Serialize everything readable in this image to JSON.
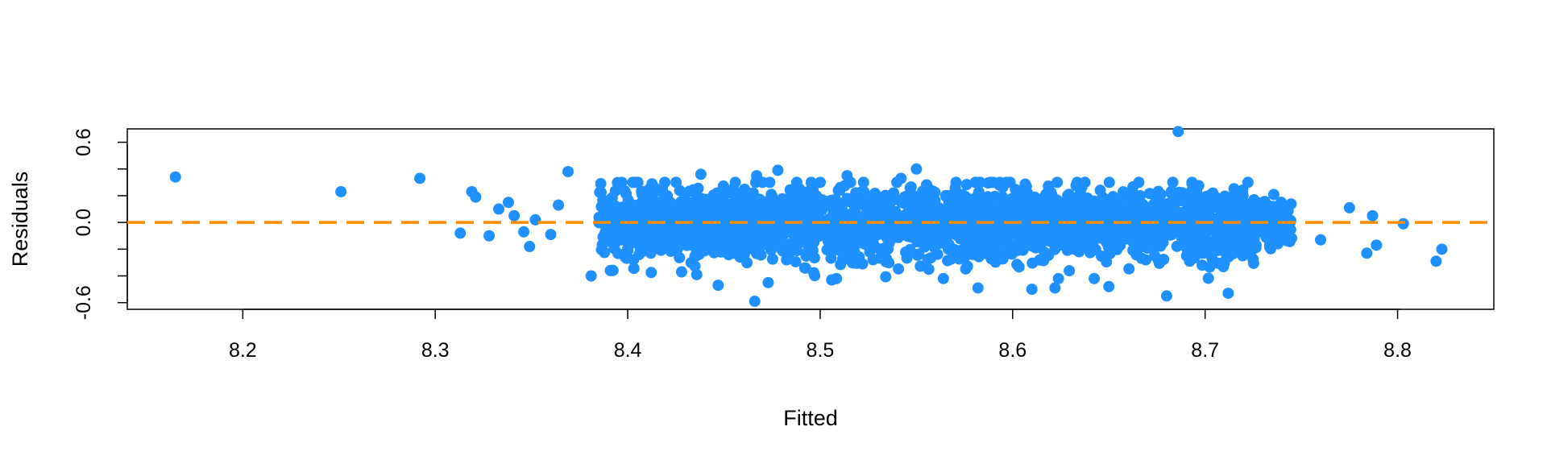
{
  "chart_data": {
    "type": "scatter",
    "title": "",
    "xlabel": "Fitted",
    "ylabel": "Residuals",
    "xlim": [
      8.14,
      8.85
    ],
    "ylim": [
      -0.65,
      0.7
    ],
    "x_ticks": [
      8.2,
      8.3,
      8.4,
      8.5,
      8.6,
      8.7,
      8.8
    ],
    "x_tick_labels": [
      "8.2",
      "8.3",
      "8.4",
      "8.5",
      "8.6",
      "8.7",
      "8.8"
    ],
    "y_ticks": [
      -0.6,
      -0.4,
      -0.2,
      0.0,
      0.2,
      0.4,
      0.6
    ],
    "y_tick_labels": [
      "-0.6",
      "",
      "",
      "0.0",
      "",
      "",
      "0.6"
    ],
    "grid": false,
    "legend": "none",
    "point_color": "#1E90FF",
    "reference_line": {
      "y": 0.0,
      "style": "dashed",
      "color": "#FF8C00"
    },
    "series": [
      {
        "points": [
          [
            8.165,
            0.34
          ],
          [
            8.251,
            0.23
          ],
          [
            8.292,
            0.33
          ],
          [
            8.313,
            -0.08
          ],
          [
            8.319,
            0.23
          ],
          [
            8.321,
            0.19
          ],
          [
            8.328,
            -0.1
          ],
          [
            8.333,
            0.1
          ],
          [
            8.338,
            0.15
          ],
          [
            8.341,
            0.05
          ],
          [
            8.346,
            -0.07
          ],
          [
            8.349,
            -0.18
          ],
          [
            8.352,
            0.02
          ],
          [
            8.36,
            -0.09
          ],
          [
            8.364,
            0.13
          ],
          [
            8.369,
            0.38
          ],
          [
            8.381,
            -0.4
          ],
          [
            8.386,
            0.29
          ],
          [
            8.391,
            -0.36
          ],
          [
            8.398,
            0.06
          ],
          [
            8.403,
            -0.28
          ],
          [
            8.412,
            -0.23
          ],
          [
            8.428,
            -0.37
          ],
          [
            8.438,
            0.36
          ],
          [
            8.447,
            -0.47
          ],
          [
            8.466,
            -0.59
          ],
          [
            8.467,
            0.35
          ],
          [
            8.473,
            -0.45
          ],
          [
            8.478,
            0.39
          ],
          [
            8.492,
            -0.34
          ],
          [
            8.5,
            0.3
          ],
          [
            8.506,
            -0.43
          ],
          [
            8.514,
            0.35
          ],
          [
            8.522,
            -0.31
          ],
          [
            8.542,
            0.33
          ],
          [
            8.55,
            0.4
          ],
          [
            8.564,
            -0.42
          ],
          [
            8.582,
            -0.49
          ],
          [
            8.61,
            -0.5
          ],
          [
            8.622,
            -0.49
          ],
          [
            8.65,
            -0.48
          ],
          [
            8.677,
            0.21
          ],
          [
            8.68,
            -0.55
          ],
          [
            8.686,
            0.68
          ],
          [
            8.692,
            -0.29
          ],
          [
            8.704,
            0.22
          ],
          [
            8.712,
            -0.53
          ],
          [
            8.722,
            -0.22
          ],
          [
            8.737,
            -0.1
          ],
          [
            8.743,
            0.09
          ],
          [
            8.76,
            -0.13
          ],
          [
            8.775,
            0.11
          ],
          [
            8.784,
            -0.23
          ],
          [
            8.787,
            0.05
          ],
          [
            8.789,
            -0.17
          ],
          [
            8.803,
            -0.01
          ],
          [
            8.82,
            -0.29
          ],
          [
            8.823,
            -0.2
          ]
        ]
      }
    ]
  }
}
